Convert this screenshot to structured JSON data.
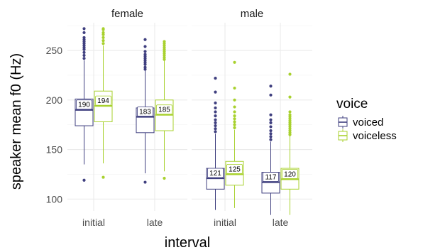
{
  "chart_data": {
    "type": "boxplot",
    "xlabel": "interval",
    "ylabel": "speaker mean f0 (Hz)",
    "ylim": [
      88,
      278
    ],
    "yticks": [
      100,
      150,
      200,
      250
    ],
    "grid": true,
    "legend": {
      "title": "voice",
      "position": "right",
      "entries": [
        {
          "label": "voiced",
          "color": "#3f3f7f"
        },
        {
          "label": "voiceless",
          "color": "#a8d12e"
        }
      ]
    },
    "facets": [
      {
        "label": "female",
        "categories": [
          "initial",
          "late"
        ],
        "groups": [
          {
            "category": "initial",
            "voice": "voiced",
            "q1": 174,
            "median": 190,
            "q3": 201,
            "whisker_low": 135,
            "whisker_high": 240,
            "outliers": [
              119,
              242,
              245,
              248,
              251,
              253,
              255,
              257,
              259,
              261,
              263,
              268,
              272
            ]
          },
          {
            "category": "initial",
            "voice": "voiceless",
            "q1": 178,
            "median": 194,
            "q3": 209,
            "whisker_low": 136,
            "whisker_high": 255,
            "outliers": [
              122,
              257,
              260,
              263,
              266,
              268,
              271,
              272
            ]
          },
          {
            "category": "late",
            "voice": "voiced",
            "q1": 167,
            "median": 183,
            "q3": 192,
            "whisker_low": 126,
            "whisker_high": 230,
            "outliers": [
              117,
              231,
              233,
              236,
              238,
              240,
              242,
              244,
              246,
              249,
              254,
              261
            ]
          },
          {
            "category": "late",
            "voice": "voiceless",
            "q1": 169,
            "median": 185,
            "q3": 200,
            "whisker_low": 128,
            "whisker_high": 240,
            "outliers": [
              121,
              241,
              243,
              245,
              247,
              249,
              251,
              253,
              255,
              257,
              259
            ]
          }
        ]
      },
      {
        "label": "male",
        "categories": [
          "initial",
          "late"
        ],
        "groups": [
          {
            "category": "initial",
            "voice": "voiced",
            "q1": 110,
            "median": 121,
            "q3": 131,
            "whisker_low": 89,
            "whisker_high": 166,
            "outliers": [
              168,
              171,
              174,
              177,
              180,
              184,
              188,
              192,
              197,
              208,
              222
            ]
          },
          {
            "category": "initial",
            "voice": "voiceless",
            "q1": 114,
            "median": 125,
            "q3": 138,
            "whisker_low": 91,
            "whisker_high": 170,
            "outliers": [
              172,
              175,
              178,
              181,
              184,
              188,
              193,
              200,
              212,
              238
            ]
          },
          {
            "category": "late",
            "voice": "voiced",
            "q1": 106,
            "median": 117,
            "q3": 127,
            "whisker_low": 84,
            "whisker_high": 158,
            "outliers": [
              160,
              163,
              166,
              169,
              173,
              177,
              180,
              185,
              205,
              214
            ]
          },
          {
            "category": "late",
            "voice": "voiceless",
            "q1": 110,
            "median": 120,
            "q3": 131,
            "whisker_low": 84,
            "whisker_high": 164,
            "outliers": [
              165,
              167,
              169,
              171,
              173,
              175,
              177,
              179,
              181,
              183,
              185,
              188,
              203,
              226
            ]
          }
        ]
      }
    ]
  }
}
